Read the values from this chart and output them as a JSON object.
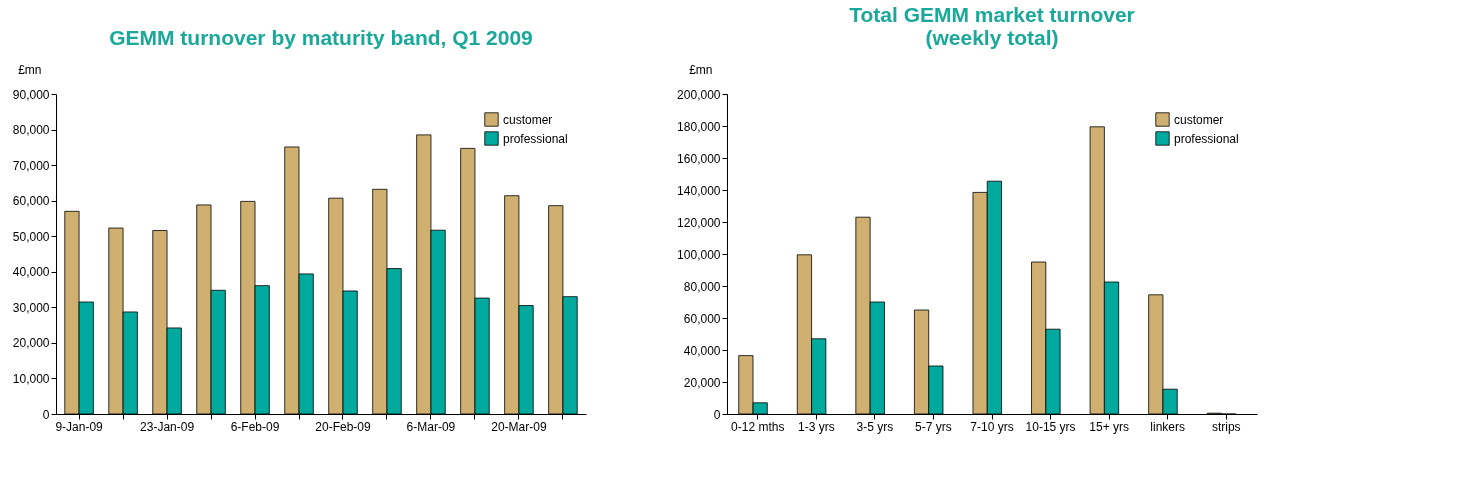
{
  "chart_data": [
    {
      "type": "bar",
      "title": "GEMM turnover by maturity band, Q1 2009",
      "ylabel": "£mn",
      "categories": [
        "9-Jan-09",
        null,
        "23-Jan-09",
        null,
        "6-Feb-09",
        null,
        "20-Feb-09",
        null,
        "6-Mar-09",
        null,
        "20-Mar-09",
        null
      ],
      "series": [
        {
          "name": "customer",
          "color": "#cfb070",
          "values": [
            57000,
            52300,
            51600,
            58800,
            59800,
            75100,
            60700,
            63200,
            78500,
            74700,
            61400,
            58600
          ]
        },
        {
          "name": "professional",
          "color": "#00a99d",
          "values": [
            31500,
            28700,
            24200,
            34800,
            36100,
            39400,
            34600,
            40900,
            51700,
            32600,
            30500,
            33000
          ]
        }
      ],
      "ylim": [
        0,
        90000
      ],
      "yticks": [
        0,
        {
          "value": 10000,
          "label": "10,000"
        },
        {
          "value": 20000,
          "label": "20,000"
        },
        {
          "value": 30000,
          "label": "30,000"
        },
        {
          "value": 40000,
          "label": "40,000"
        },
        {
          "value": 50000,
          "label": "50,000"
        },
        {
          "value": 60000,
          "label": "60,000"
        },
        {
          "value": 70000,
          "label": "70,000"
        },
        {
          "value": 80000,
          "label": "80,000"
        },
        {
          "value": 90000,
          "label": "90,000"
        }
      ],
      "grid": false,
      "legend": "top right"
    },
    {
      "type": "bar",
      "title": "Total GEMM market turnover\n(weekly total)",
      "ylabel": "£mn",
      "categories": [
        "0-12 mths",
        "1-3 yrs",
        "3-5 yrs",
        "5-7 yrs",
        "7-10 yrs",
        "10-15 yrs",
        "15+ yrs",
        "linkers",
        "strips"
      ],
      "series": [
        {
          "name": "customer",
          "color": "#cfb070",
          "values": [
            36500,
            99500,
            123000,
            65000,
            138500,
            95000,
            179500,
            74500,
            500
          ]
        },
        {
          "name": "professional",
          "color": "#00a99d",
          "values": [
            7000,
            47000,
            70000,
            30000,
            145500,
            53000,
            82500,
            15500,
            0
          ]
        }
      ],
      "ylim": [
        0,
        200000
      ],
      "yticks": [
        0,
        {
          "value": 20000,
          "label": "20,000"
        },
        {
          "value": 40000,
          "label": "40,000"
        },
        {
          "value": 60000,
          "label": "60,000"
        },
        {
          "value": 80000,
          "label": "80,000"
        },
        {
          "value": 100000,
          "label": "100,000"
        },
        {
          "value": 120000,
          "label": "120,000"
        },
        {
          "value": 140000,
          "label": "140,000"
        },
        {
          "value": 160000,
          "label": "160,000"
        },
        {
          "value": 180000,
          "label": "180,000"
        },
        {
          "value": 200000,
          "label": "200,000"
        }
      ],
      "grid": false,
      "legend": "top right"
    }
  ]
}
